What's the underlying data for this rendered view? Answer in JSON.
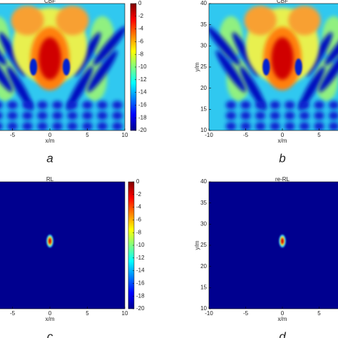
{
  "chart_data": [
    {
      "type": "heatmap",
      "title": "CBF",
      "xlabel": "x/m",
      "caption": "a",
      "map": "beam",
      "xlim": [
        -10,
        10
      ],
      "xticks": [
        -5,
        0,
        5,
        10
      ],
      "ylim": [
        10,
        40
      ],
      "colorbar": {
        "lim": [
          -20,
          0
        ],
        "ticks": [
          0,
          -2,
          -4,
          -6,
          -8,
          -10,
          -12,
          -14,
          -16,
          -18,
          -20
        ]
      }
    },
    {
      "type": "heatmap",
      "title": "CBF",
      "xlabel": "x/m",
      "ylabel": "y/m",
      "caption": "b",
      "map": "beam",
      "xlim": [
        -10,
        10
      ],
      "xticks": [
        -10,
        -5,
        0,
        5
      ],
      "ylim": [
        10,
        40
      ],
      "yticks": [
        10,
        15,
        20,
        25,
        30,
        35,
        40
      ]
    },
    {
      "type": "heatmap",
      "title": "RL",
      "xlabel": "x/m",
      "caption": "c",
      "map": "point",
      "xlim": [
        -10,
        10
      ],
      "xticks": [
        -5,
        0,
        5,
        10
      ],
      "ylim": [
        10,
        40
      ],
      "colorbar": {
        "lim": [
          -20,
          0
        ],
        "ticks": [
          0,
          -2,
          -4,
          -6,
          -8,
          -10,
          -12,
          -14,
          -16,
          -18,
          -20
        ]
      }
    },
    {
      "type": "heatmap",
      "title": "re-RL",
      "xlabel": "x/m",
      "ylabel": "y/m",
      "caption": "d",
      "map": "point",
      "xlim": [
        -10,
        10
      ],
      "xticks": [
        -10,
        -5,
        0,
        5
      ],
      "ylim": [
        10,
        40
      ],
      "yticks": [
        10,
        15,
        20,
        25,
        30,
        35,
        40
      ]
    }
  ]
}
